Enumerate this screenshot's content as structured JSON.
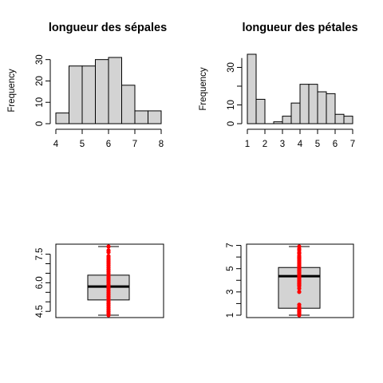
{
  "chart_data": [
    {
      "type": "histogram",
      "title": "longueur des sépales",
      "xlabel": "",
      "ylabel": "Frequency",
      "bins": [
        [
          4.0,
          4.5
        ],
        [
          4.5,
          5.0
        ],
        [
          5.0,
          5.5
        ],
        [
          5.5,
          6.0
        ],
        [
          6.0,
          6.5
        ],
        [
          6.5,
          7.0
        ],
        [
          7.0,
          7.5
        ],
        [
          7.5,
          8.0
        ]
      ],
      "values": [
        5,
        27,
        27,
        30,
        31,
        18,
        6,
        6
      ],
      "xlim": [
        4,
        8
      ],
      "ylim": [
        0,
        31
      ],
      "x_ticks": [
        "4",
        "5",
        "6",
        "7",
        "8"
      ],
      "y_ticks": [
        "0",
        "10",
        "20",
        "30"
      ],
      "colors": {
        "fill": "#d3d3d3",
        "stroke": "#000000"
      }
    },
    {
      "type": "histogram",
      "title": "longueur des pétales",
      "xlabel": "",
      "ylabel": "Frequency",
      "bins": [
        [
          1.0,
          1.5
        ],
        [
          1.5,
          2.0
        ],
        [
          2.0,
          2.5
        ],
        [
          2.5,
          3.0
        ],
        [
          3.0,
          3.5
        ],
        [
          3.5,
          4.0
        ],
        [
          4.0,
          4.5
        ],
        [
          4.5,
          5.0
        ],
        [
          5.0,
          5.5
        ],
        [
          5.5,
          6.0
        ],
        [
          6.0,
          6.5
        ],
        [
          6.5,
          7.0
        ]
      ],
      "values": [
        37,
        13,
        0,
        1,
        4,
        11,
        21,
        21,
        17,
        16,
        5,
        4
      ],
      "xlim": [
        1,
        7
      ],
      "ylim": [
        0,
        37
      ],
      "x_ticks": [
        "1",
        "2",
        "3",
        "4",
        "5",
        "6",
        "7"
      ],
      "y_ticks": [
        "0",
        "10",
        "30"
      ],
      "colors": {
        "fill": "#d3d3d3",
        "stroke": "#000000"
      }
    },
    {
      "type": "boxplot",
      "title": "",
      "ylabel": "",
      "stats": {
        "min": 4.3,
        "q1": 5.1,
        "median": 5.8,
        "q3": 6.4,
        "max": 7.9
      },
      "ylim": [
        4.3,
        7.9
      ],
      "y_ticks": [
        "4.5",
        "6.0",
        "7.5"
      ],
      "points": [
        4.3,
        4.4,
        4.5,
        4.6,
        4.7,
        4.8,
        4.9,
        5.0,
        5.1,
        5.2,
        5.3,
        5.4,
        5.5,
        5.6,
        5.7,
        5.8,
        5.9,
        6.0,
        6.1,
        6.2,
        6.3,
        6.4,
        6.5,
        6.6,
        6.7,
        6.8,
        6.9,
        7.0,
        7.1,
        7.2,
        7.3,
        7.4,
        7.6,
        7.7,
        7.9
      ],
      "colors": {
        "box": "#d3d3d3",
        "points": "#ff0000",
        "stroke": "#000000"
      }
    },
    {
      "type": "boxplot",
      "title": "",
      "ylabel": "",
      "stats": {
        "min": 1.0,
        "q1": 1.6,
        "median": 4.35,
        "q3": 5.1,
        "max": 6.9
      },
      "ylim": [
        1.0,
        6.9
      ],
      "y_ticks": [
        "1",
        "3",
        "5",
        "7"
      ],
      "points": [
        1.0,
        1.1,
        1.2,
        1.3,
        1.4,
        1.5,
        1.6,
        1.7,
        1.9,
        3.0,
        3.3,
        3.5,
        3.6,
        3.7,
        3.8,
        3.9,
        4.0,
        4.1,
        4.2,
        4.3,
        4.4,
        4.5,
        4.6,
        4.7,
        4.8,
        4.9,
        5.0,
        5.1,
        5.2,
        5.3,
        5.4,
        5.5,
        5.6,
        5.7,
        5.8,
        5.9,
        6.0,
        6.1,
        6.3,
        6.4,
        6.6,
        6.7,
        6.9
      ],
      "colors": {
        "box": "#d3d3d3",
        "points": "#ff0000",
        "stroke": "#000000"
      }
    }
  ]
}
